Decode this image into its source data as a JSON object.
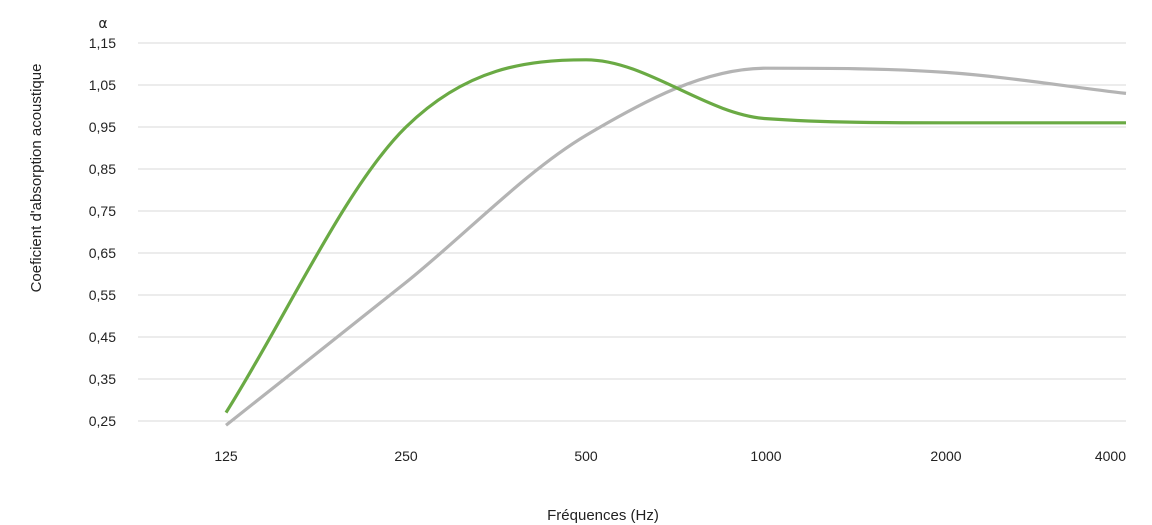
{
  "chart_data": {
    "type": "line",
    "title": "",
    "xlabel": "Fréquences (Hz)",
    "ylabel": "Coeficient d'absorption acoustique",
    "yunit_symbol": "α",
    "x_scale": "log2",
    "x": [
      125,
      250,
      500,
      1000,
      2000,
      4000
    ],
    "x_tick_labels": [
      "125",
      "250",
      "500",
      "1000",
      "2000",
      "4000"
    ],
    "ylim": [
      0.25,
      1.15
    ],
    "y_ticks": [
      0.25,
      0.35,
      0.45,
      0.55,
      0.65,
      0.75,
      0.85,
      0.95,
      1.05,
      1.15
    ],
    "y_tick_labels": [
      "0,25",
      "0,35",
      "0,45",
      "0,55",
      "0,65",
      "0,75",
      "0,85",
      "0,95",
      "1,05",
      "1,15"
    ],
    "grid": true,
    "series": [
      {
        "color": "#6aaa44",
        "values": [
          0.27,
          0.95,
          1.11,
          0.97,
          0.96,
          0.96
        ]
      },
      {
        "color": "#b4b4b4",
        "values": [
          0.24,
          0.58,
          0.93,
          1.09,
          1.08,
          1.03
        ]
      }
    ]
  }
}
